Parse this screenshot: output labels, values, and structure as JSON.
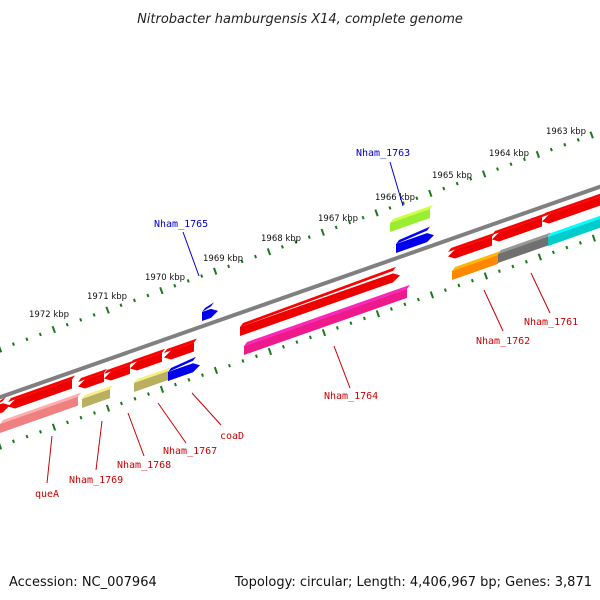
{
  "title": "Nitrobacter hamburgensis X14, complete genome",
  "footer": {
    "accession": "Accession: NC_007964",
    "summary": "Topology: circular; Length: 4,406,967 bp; Genes: 3,871"
  },
  "ruler": {
    "ticks": [
      {
        "label": "1963 kbp"
      },
      {
        "label": "1964 kbp"
      },
      {
        "label": "1965 kbp"
      },
      {
        "label": "1966 kbp"
      },
      {
        "label": "1967 kbp"
      },
      {
        "label": "1968 kbp"
      },
      {
        "label": "1969 kbp"
      },
      {
        "label": "1970 kbp"
      },
      {
        "label": "1971 kbp"
      },
      {
        "label": "1972 kbp"
      }
    ]
  },
  "gene_labels": [
    {
      "label": "Nham_1763",
      "color": "#0000cc"
    },
    {
      "label": "Nham_1765",
      "color": "#0000cc"
    },
    {
      "label": "Nham_1761",
      "color": "#cc0000"
    },
    {
      "label": "Nham_1762",
      "color": "#cc0000"
    },
    {
      "label": "Nham_1764",
      "color": "#cc0000"
    },
    {
      "label": "coaD",
      "color": "#cc0000"
    },
    {
      "label": "Nham_1767",
      "color": "#cc0000"
    },
    {
      "label": "Nham_1768",
      "color": "#cc0000"
    },
    {
      "label": "Nham_1769",
      "color": "#cc0000"
    },
    {
      "label": "queA",
      "color": "#cc0000"
    }
  ],
  "colors": {
    "backbone": "#808080",
    "ruler_dots": "#1a7a1a",
    "red": "#ee0000",
    "magenta": "#ee1a8c",
    "pink": "#f08080",
    "olive": "#b8b060",
    "blue": "#0000ee",
    "lime": "#99ee33",
    "orange": "#ff8800",
    "gray": "#707070",
    "cyan": "#00cccc"
  }
}
